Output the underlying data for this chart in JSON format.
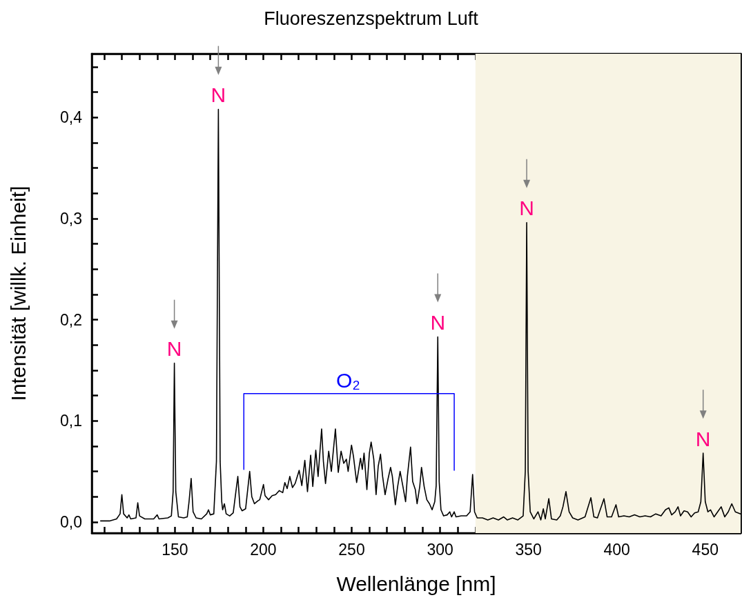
{
  "chart_data": {
    "type": "line",
    "title": "Fluoreszenzspektrum Luft",
    "xlabel": "Wellenlänge [nm]",
    "ylabel": "Intensität [willk. Einheit]",
    "xlim": [
      103,
      470
    ],
    "ylim": [
      -0.011,
      0.463
    ],
    "xticks": [
      {
        "value": 110,
        "label": null
      },
      {
        "value": 120,
        "label": null
      },
      {
        "value": 130,
        "label": null
      },
      {
        "value": 140,
        "label": null
      },
      150,
      {
        "value": 160,
        "label": null
      },
      {
        "value": 170,
        "label": null
      },
      {
        "value": 180,
        "label": null
      },
      {
        "value": 190,
        "label": null
      },
      200,
      {
        "value": 210,
        "label": null
      },
      {
        "value": 220,
        "label": null
      },
      {
        "value": 230,
        "label": null
      },
      {
        "value": 240,
        "label": null
      },
      250,
      {
        "value": 260,
        "label": null
      },
      {
        "value": 270,
        "label": null
      },
      {
        "value": 280,
        "label": null
      },
      {
        "value": 290,
        "label": null
      },
      300,
      {
        "value": 310,
        "label": null
      },
      {
        "value": 320,
        "label": null
      },
      {
        "value": 330,
        "label": null
      },
      {
        "value": 340,
        "label": null
      },
      350,
      {
        "value": 360,
        "label": null
      },
      {
        "value": 370,
        "label": null
      },
      {
        "value": 380,
        "label": null
      },
      {
        "value": 390,
        "label": null
      },
      400,
      {
        "value": 410,
        "label": null
      },
      {
        "value": 420,
        "label": null
      },
      {
        "value": 430,
        "label": null
      },
      {
        "value": 440,
        "label": null
      },
      450,
      {
        "value": 460,
        "label": null
      }
    ],
    "yticks": [
      {
        "value": 0,
        "label": "0,0"
      },
      {
        "value": 0.025,
        "label": null
      },
      {
        "value": 0.05,
        "label": null
      },
      {
        "value": 0.075,
        "label": null
      },
      {
        "value": 0.1,
        "label": "0,1"
      },
      {
        "value": 0.125,
        "label": null
      },
      {
        "value": 0.15,
        "label": null
      },
      {
        "value": 0.175,
        "label": null
      },
      {
        "value": 0.2,
        "label": "0,2"
      },
      {
        "value": 0.225,
        "label": null
      },
      {
        "value": 0.25,
        "label": null
      },
      {
        "value": 0.275,
        "label": null
      },
      {
        "value": 0.3,
        "label": "0,3"
      },
      {
        "value": 0.325,
        "label": null
      },
      {
        "value": 0.35,
        "label": null
      },
      {
        "value": 0.375,
        "label": null
      },
      {
        "value": 0.4,
        "label": "0,4"
      },
      {
        "value": 0.425,
        "label": null
      },
      {
        "value": 0.45,
        "label": null
      }
    ],
    "grid": false,
    "marker": "none",
    "line_style": "solid",
    "bands": [
      {
        "axis": "x",
        "from": 320,
        "to": 470,
        "color": "#f8f4e4"
      }
    ],
    "annotations": [
      {
        "text": "N",
        "x": 149.7,
        "y": 0.157
      },
      {
        "text": "N",
        "x": 174.6,
        "y": 0.408
      },
      {
        "text": "N",
        "x": 298.7,
        "y": 0.183
      },
      {
        "text": "N",
        "x": 349,
        "y": 0.296
      },
      {
        "text": "N",
        "x": 448.8,
        "y": 0.068
      },
      {
        "text": "O₂",
        "x": 248,
        "y": 0.127
      }
    ],
    "series": [
      {
        "color": "#000000",
        "x": [
          108,
          113,
          117,
          119,
          120,
          121,
          123,
          124,
          125,
          128,
          129,
          130,
          133,
          138,
          140,
          141,
          146,
          148,
          149,
          149.7,
          150.5,
          152,
          155,
          157,
          158,
          159.2,
          160.3,
          162,
          165,
          168,
          169,
          170,
          172,
          173.5,
          174.6,
          175.6,
          176.5,
          177,
          178,
          179,
          181,
          183,
          184.5,
          185.6,
          186.8,
          188,
          190,
          192.3,
          193.5,
          195,
          197,
          198,
          200.1,
          201,
          203,
          205,
          207,
          209,
          211,
          212.2,
          213.5,
          215,
          216.5,
          218,
          220.3,
          221.8,
          223.5,
          225,
          226.8,
          228,
          229.7,
          231,
          233,
          234,
          235.2,
          237,
          238.5,
          240.8,
          242.4,
          244,
          245.5,
          247,
          248,
          249.9,
          251,
          252.8,
          255,
          256,
          257,
          258.6,
          260,
          261,
          262.5,
          263.8,
          265,
          266.3,
          267.5,
          268.9,
          270.5,
          272,
          273,
          274.7,
          276,
          277.4,
          279,
          280.5,
          281.5,
          283.3,
          284.5,
          286,
          287,
          288.5,
          289.5,
          291,
          292.5,
          294,
          295.5,
          297,
          297.8,
          298.7,
          299.5,
          300.5,
          302,
          304,
          305.5,
          306.5,
          308,
          309,
          312,
          315,
          317,
          318.4,
          319.5,
          321,
          324,
          327,
          330,
          333,
          336,
          338,
          341,
          344,
          347,
          348.2,
          349,
          349.8,
          351,
          353,
          355.4,
          357,
          358.4,
          359.5,
          361.5,
          363,
          366,
          368,
          369.5,
          371.2,
          373,
          375,
          378,
          382,
          385.3,
          387,
          389,
          392.7,
          394.5,
          397,
          399.5,
          401,
          404,
          407,
          410,
          413,
          416,
          419,
          422,
          425,
          427.5,
          429.4,
          431,
          433,
          434.6,
          436,
          438,
          440,
          442,
          444,
          446,
          447.5,
          448.8,
          450,
          451.5,
          453,
          455,
          457,
          459,
          461,
          463,
          465,
          467,
          470
        ],
        "values": [
          0.001,
          0.001,
          0.003,
          0.008,
          0.027,
          0.008,
          0.004,
          0.007,
          0.003,
          0.004,
          0.019,
          0.006,
          0.003,
          0.003,
          0.007,
          0.003,
          0.004,
          0.006,
          0.03,
          0.157,
          0.03,
          0.005,
          0.004,
          0.005,
          0.02,
          0.043,
          0.01,
          0.004,
          0.003,
          0.008,
          0.012,
          0.007,
          0.008,
          0.06,
          0.408,
          0.06,
          0.02,
          0.012,
          0.018,
          0.008,
          0.006,
          0.009,
          0.03,
          0.045,
          0.015,
          0.011,
          0.013,
          0.05,
          0.025,
          0.018,
          0.021,
          0.022,
          0.037,
          0.026,
          0.022,
          0.026,
          0.027,
          0.031,
          0.029,
          0.039,
          0.033,
          0.045,
          0.034,
          0.038,
          0.051,
          0.036,
          0.061,
          0.03,
          0.066,
          0.035,
          0.071,
          0.045,
          0.092,
          0.06,
          0.038,
          0.07,
          0.05,
          0.092,
          0.049,
          0.07,
          0.058,
          0.062,
          0.05,
          0.076,
          0.065,
          0.039,
          0.063,
          0.052,
          0.068,
          0.032,
          0.068,
          0.079,
          0.062,
          0.027,
          0.055,
          0.067,
          0.045,
          0.027,
          0.042,
          0.054,
          0.045,
          0.017,
          0.035,
          0.05,
          0.035,
          0.02,
          0.045,
          0.074,
          0.04,
          0.032,
          0.018,
          0.035,
          0.054,
          0.035,
          0.022,
          0.018,
          0.012,
          0.02,
          0.036,
          0.183,
          0.04,
          0.012,
          0.006,
          0.007,
          0.01,
          0.005,
          0.01,
          0.005,
          0.006,
          0.006,
          0.01,
          0.047,
          0.01,
          0.004,
          0.004,
          0.002,
          0.004,
          0.002,
          0.005,
          0.002,
          0.004,
          0.002,
          0.006,
          0.05,
          0.296,
          0.05,
          0.01,
          0.003,
          0.01,
          0.002,
          0.013,
          0.003,
          0.023,
          0.003,
          0.002,
          0.006,
          0.015,
          0.03,
          0.01,
          0.004,
          0.002,
          0.005,
          0.024,
          0.005,
          0.004,
          0.023,
          0.005,
          0.005,
          0.017,
          0.005,
          0.006,
          0.005,
          0.007,
          0.005,
          0.006,
          0.005,
          0.008,
          0.006,
          0.012,
          0.014,
          0.007,
          0.01,
          0.015,
          0.006,
          0.011,
          0.01,
          0.005,
          0.009,
          0.01,
          0.02,
          0.068,
          0.02,
          0.01,
          0.012,
          0.005,
          0.01,
          0.015,
          0.005,
          0.01,
          0.018,
          0.01,
          0.008
        ]
      },
      {
        "type": "line",
        "color": "#0000ff",
        "x": [
          189,
          189,
          308,
          308
        ],
        "values": [
          0.052,
          0.127,
          0.127,
          0.051
        ]
      }
    ]
  }
}
